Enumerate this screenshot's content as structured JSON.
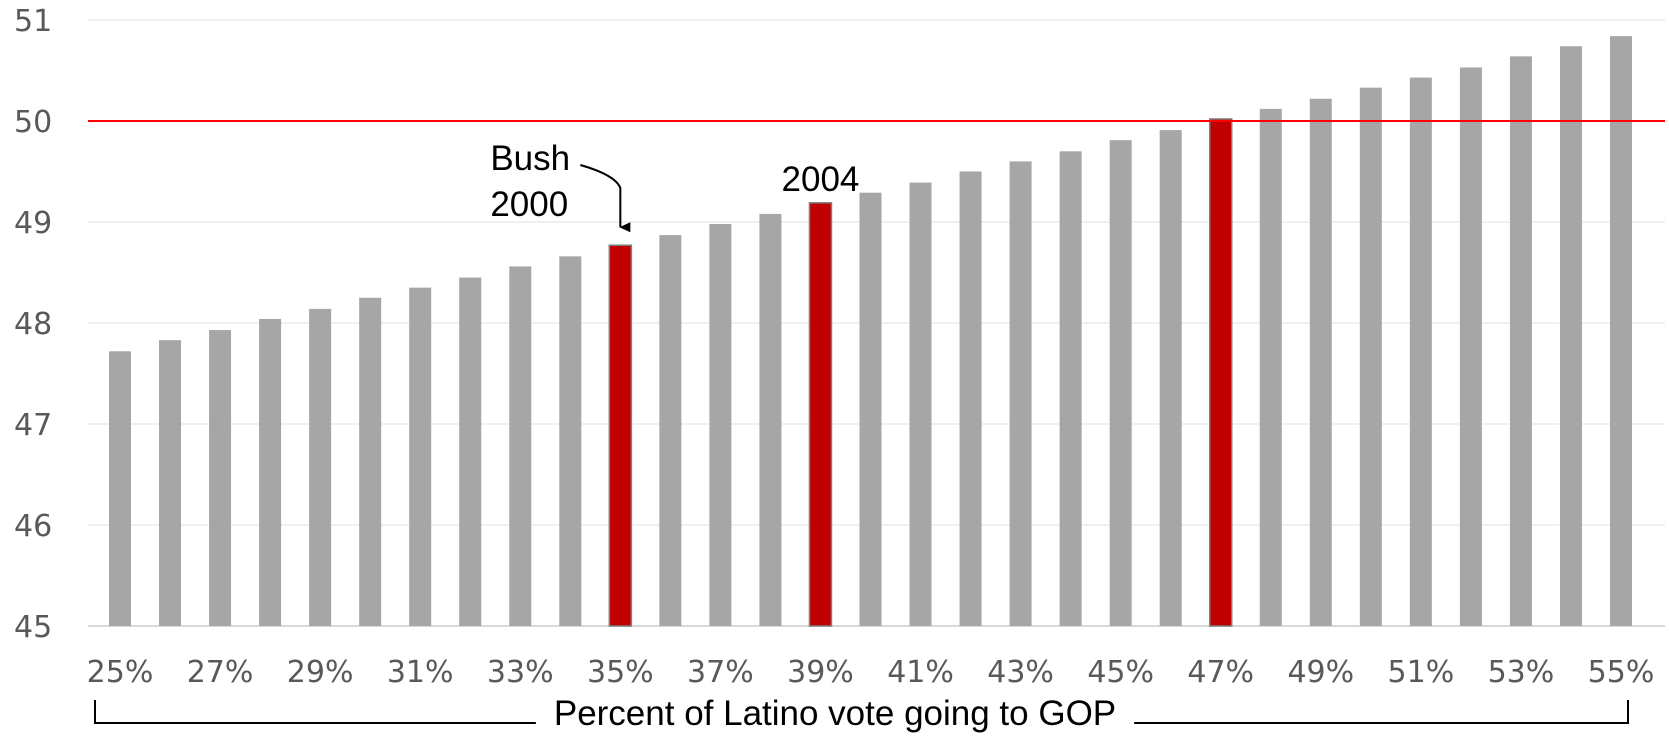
{
  "chart_data": {
    "type": "bar",
    "xlabel": "Percent of Latino vote going to GOP",
    "ylabel": "",
    "ylim": [
      45,
      51
    ],
    "yticks": [
      45,
      46,
      47,
      48,
      49,
      50,
      51
    ],
    "grid": true,
    "legend": "none",
    "categories": [
      "25%",
      "26%",
      "27%",
      "28%",
      "29%",
      "30%",
      "31%",
      "32%",
      "33%",
      "34%",
      "35%",
      "36%",
      "37%",
      "38%",
      "39%",
      "40%",
      "41%",
      "42%",
      "43%",
      "44%",
      "45%",
      "46%",
      "47%",
      "48%",
      "49%",
      "50%",
      "51%",
      "52%",
      "53%",
      "54%",
      "55%"
    ],
    "tick_labels": [
      "25%",
      "27%",
      "29%",
      "31%",
      "33%",
      "35%",
      "37%",
      "39%",
      "41%",
      "43%",
      "45%",
      "47%",
      "49%",
      "51%",
      "53%",
      "55%"
    ],
    "values": [
      47.72,
      47.83,
      47.93,
      48.04,
      48.14,
      48.25,
      48.35,
      48.45,
      48.56,
      48.66,
      48.77,
      48.87,
      48.98,
      49.08,
      49.19,
      49.29,
      49.39,
      49.5,
      49.6,
      49.7,
      49.81,
      49.91,
      50.02,
      50.12,
      50.22,
      50.33,
      50.43,
      50.53,
      50.64,
      50.74,
      50.84
    ],
    "highlighted": [
      "35%",
      "39%",
      "47%"
    ],
    "reference_line": {
      "y": 50,
      "color": "#ff0000"
    },
    "annotations": [
      {
        "lines": [
          "Bush",
          "2000"
        ],
        "category": "35%",
        "arrow": true
      },
      {
        "lines": [
          "2004"
        ],
        "category": "39%",
        "arrow": false
      }
    ],
    "colors": {
      "bar": "#a6a6a6",
      "highlight": "#c00000",
      "highlight_edge": "#7f7f7f",
      "grid": "#ececec",
      "tick_text": "#595959",
      "bracket": "#000000"
    }
  }
}
